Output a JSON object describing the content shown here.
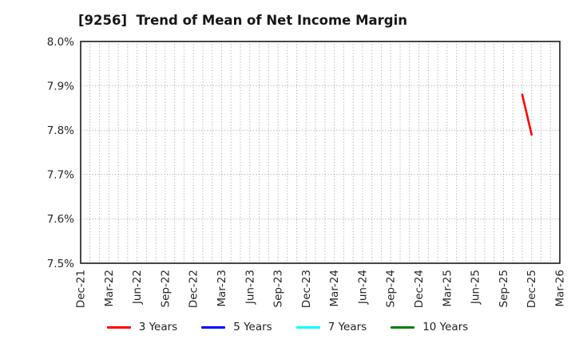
{
  "chart_data": {
    "type": "line",
    "title": "[9256]  Trend of Mean of Net Income Margin",
    "xlabel": "",
    "ylabel": "",
    "ylim": [
      7.5,
      8.0
    ],
    "y_ticks": [
      {
        "value": 7.5,
        "label": "7.5%"
      },
      {
        "value": 7.6,
        "label": "7.6%"
      },
      {
        "value": 7.7,
        "label": "7.7%"
      },
      {
        "value": 7.8,
        "label": "7.8%"
      },
      {
        "value": 7.9,
        "label": "7.9%"
      },
      {
        "value": 8.0,
        "label": "8.0%"
      }
    ],
    "x_ticks": [
      "Dec-21",
      "Mar-22",
      "Jun-22",
      "Sep-22",
      "Dec-22",
      "Mar-23",
      "Jun-23",
      "Sep-23",
      "Dec-23",
      "Mar-24",
      "Jun-24",
      "Sep-24",
      "Dec-24",
      "Mar-25",
      "Jun-25",
      "Sep-25",
      "Dec-25",
      "Mar-26"
    ],
    "grid": true,
    "grid_style": "dotted",
    "legend_position": "bottom",
    "series": [
      {
        "name": "3 Years",
        "color": "#ff0000",
        "points": [
          {
            "month": "Nov-25",
            "value": 7.88
          },
          {
            "month": "Dec-25",
            "value": 7.79
          }
        ]
      },
      {
        "name": "5 Years",
        "color": "#0000ff",
        "points": []
      },
      {
        "name": "7 Years",
        "color": "#00ffff",
        "points": []
      },
      {
        "name": "10 Years",
        "color": "#008000",
        "points": []
      }
    ]
  }
}
